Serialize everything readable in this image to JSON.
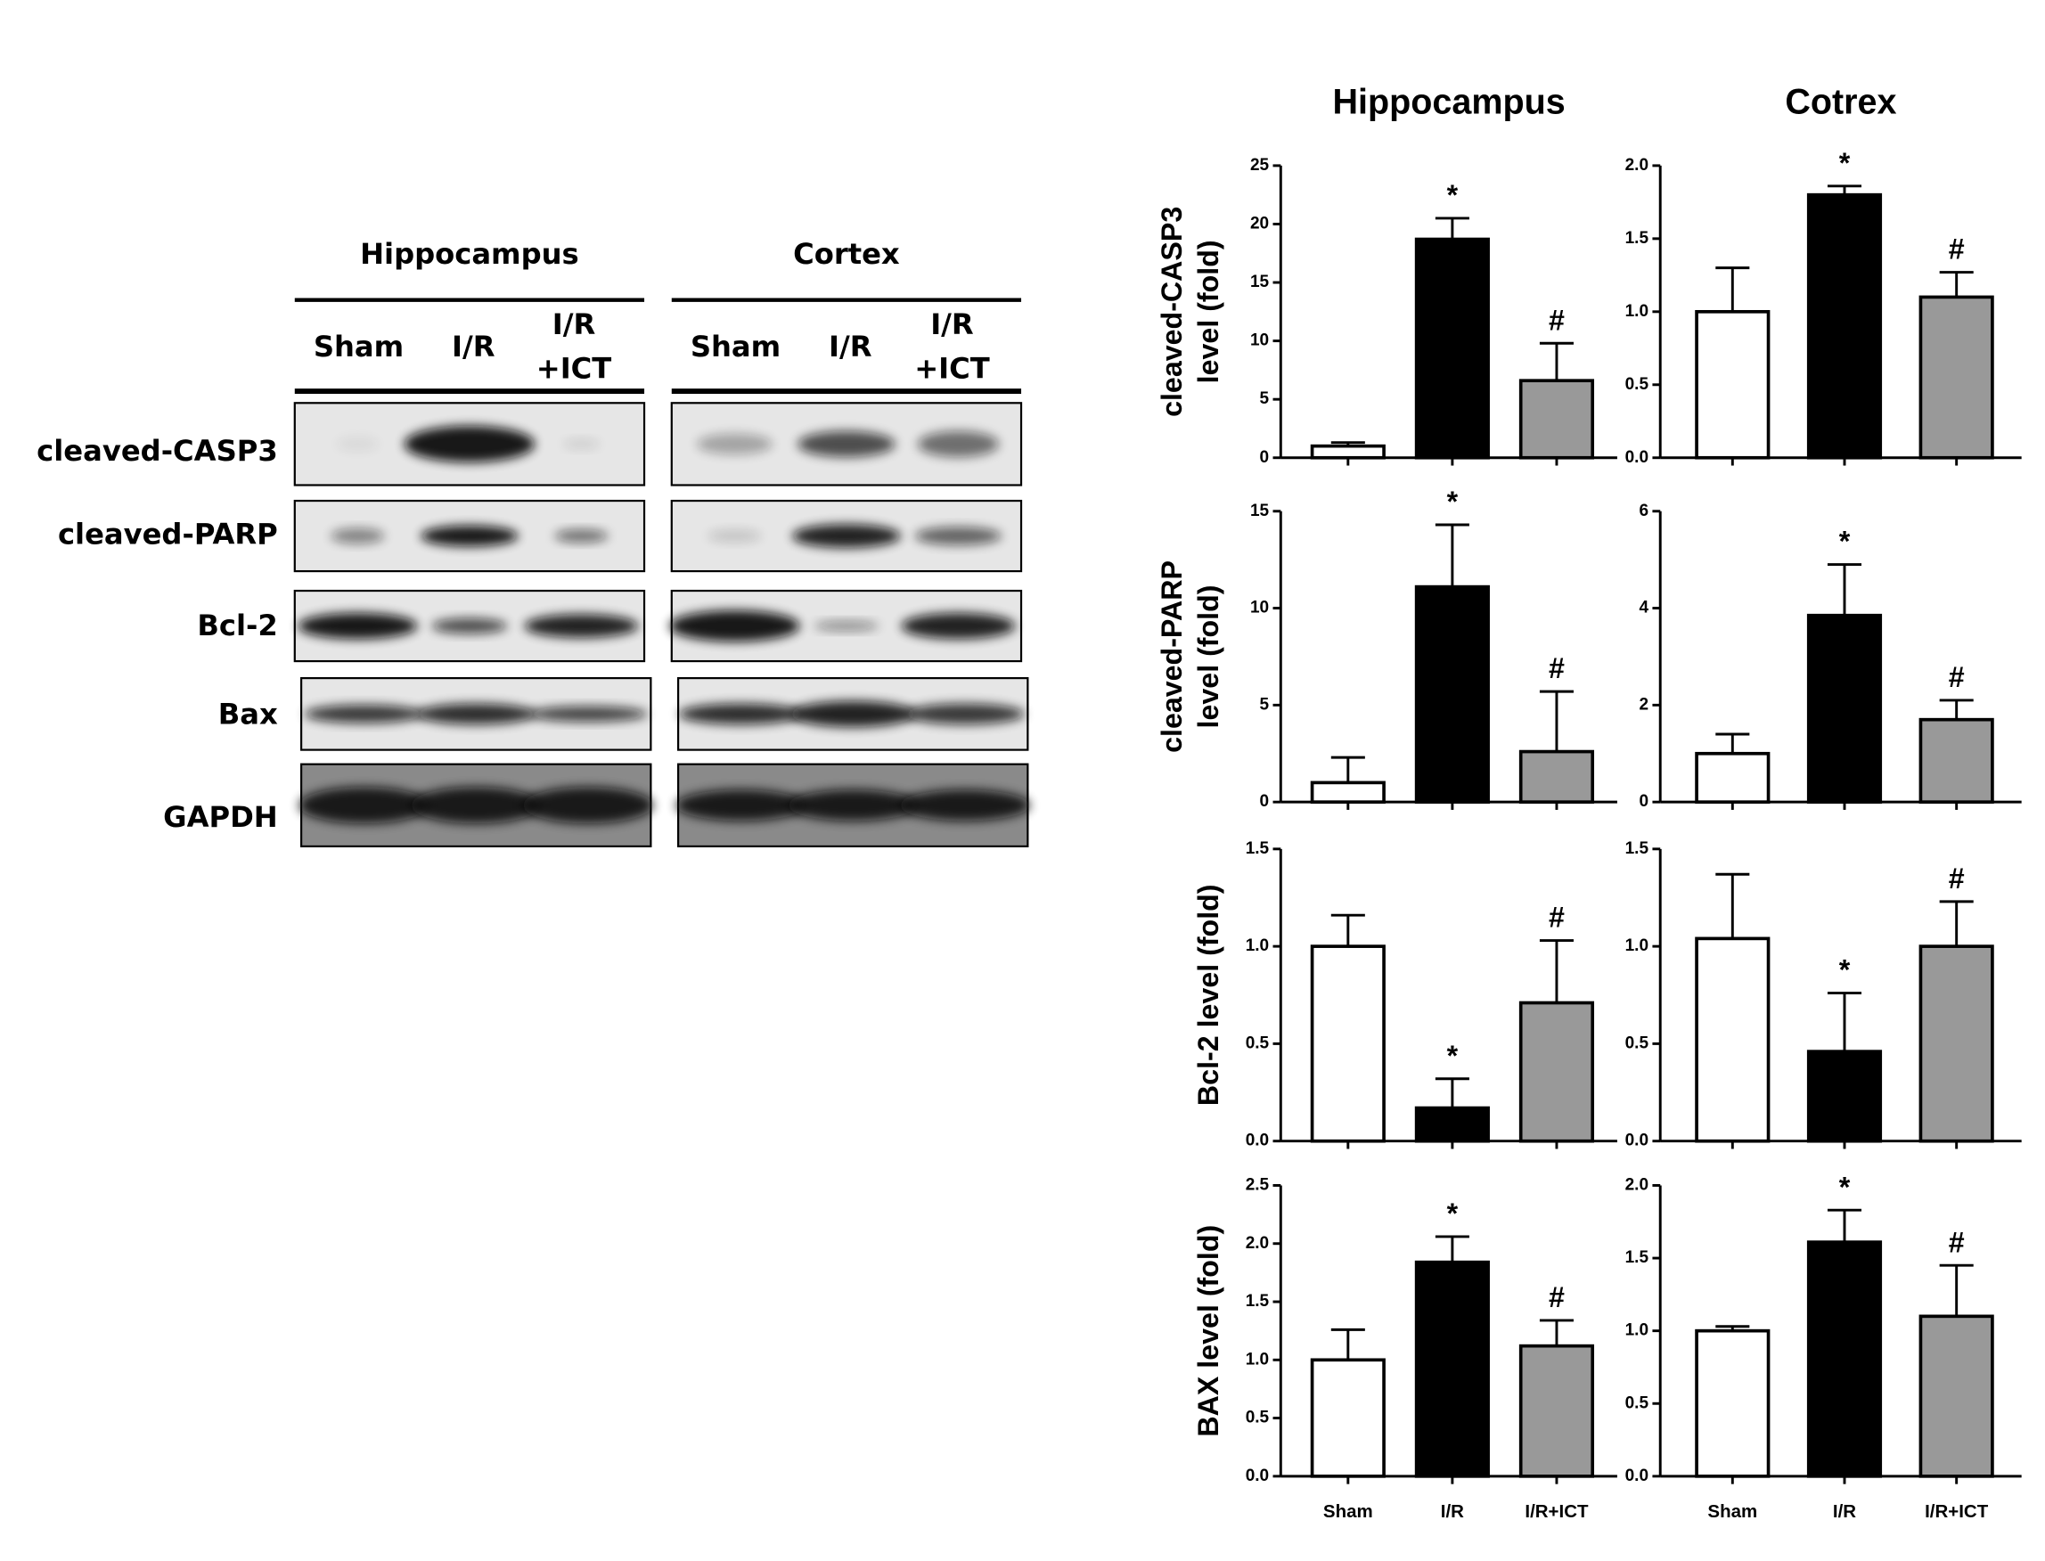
{
  "blot": {
    "groups": [
      "Hippocampus",
      "Cortex"
    ],
    "lanes": [
      [
        "Sham"
      ],
      [
        "I/R"
      ],
      [
        "I/R",
        "+ICT"
      ]
    ],
    "proteins": [
      "cleaved-CASP3",
      "cleaved-PARP",
      "Bcl-2",
      "Bax",
      "GAPDH"
    ]
  },
  "chart_data": [
    {
      "type": "bar",
      "title": "Hippocampus",
      "y_label": [
        "cleaved-CASP3",
        "level (fold)"
      ],
      "categories": [
        null,
        null,
        null
      ],
      "values": [
        1.0,
        18.7,
        6.6
      ],
      "errors": [
        0.3,
        1.8,
        3.2
      ],
      "annotations": [
        null,
        "*",
        "#"
      ],
      "colors": [
        "#ffffff",
        "#000000",
        "#999999"
      ],
      "ylim": [
        0,
        25
      ],
      "yticks": [
        0,
        5,
        10,
        15,
        20,
        25
      ]
    },
    {
      "type": "bar",
      "title": "Cotrex",
      "categories": [
        null,
        null,
        null
      ],
      "values": [
        1.0,
        1.8,
        1.1
      ],
      "errors": [
        0.3,
        0.06,
        0.17
      ],
      "annotations": [
        null,
        "*",
        "#"
      ],
      "colors": [
        "#ffffff",
        "#000000",
        "#999999"
      ],
      "ylim": [
        0,
        2
      ],
      "yticks": [
        {
          "value": 0,
          "label": "0.0"
        },
        0.5,
        {
          "value": 1,
          "label": "1.0"
        },
        1.5,
        {
          "value": 2,
          "label": "2.0"
        }
      ]
    },
    {
      "type": "bar",
      "y_label": [
        "cleaved-PARP",
        "level (fold)"
      ],
      "categories": [
        null,
        null,
        null
      ],
      "values": [
        1.0,
        11.1,
        2.6
      ],
      "errors": [
        1.3,
        3.2,
        3.1
      ],
      "annotations": [
        null,
        "*",
        "#"
      ],
      "colors": [
        "#ffffff",
        "#000000",
        "#999999"
      ],
      "ylim": [
        0,
        15
      ],
      "yticks": [
        0,
        5,
        10,
        15
      ]
    },
    {
      "type": "bar",
      "categories": [
        null,
        null,
        null
      ],
      "values": [
        1.0,
        3.85,
        1.7
      ],
      "errors": [
        0.4,
        1.05,
        0.4
      ],
      "annotations": [
        null,
        "*",
        "#"
      ],
      "colors": [
        "#ffffff",
        "#000000",
        "#999999"
      ],
      "ylim": [
        0,
        6
      ],
      "yticks": [
        0,
        2,
        4,
        6
      ]
    },
    {
      "type": "bar",
      "y_label": [
        "Bcl-2 level (fold)"
      ],
      "categories": [
        null,
        null,
        null
      ],
      "values": [
        1.0,
        0.17,
        0.71
      ],
      "errors": [
        0.16,
        0.15,
        0.32
      ],
      "annotations": [
        null,
        "*",
        "#"
      ],
      "colors": [
        "#ffffff",
        "#000000",
        "#999999"
      ],
      "ylim": [
        0,
        1.5
      ],
      "yticks": [
        {
          "value": 0,
          "label": "0.0"
        },
        0.5,
        {
          "value": 1,
          "label": "1.0"
        },
        1.5
      ]
    },
    {
      "type": "bar",
      "categories": [
        null,
        null,
        null
      ],
      "values": [
        1.04,
        0.46,
        1.0
      ],
      "errors": [
        0.33,
        0.3,
        0.23
      ],
      "annotations": [
        null,
        "*",
        "#"
      ],
      "colors": [
        "#ffffff",
        "#000000",
        "#999999"
      ],
      "ylim": [
        0,
        1.5
      ],
      "yticks": [
        {
          "value": 0,
          "label": "0.0"
        },
        0.5,
        {
          "value": 1,
          "label": "1.0"
        },
        1.5
      ]
    },
    {
      "type": "bar",
      "y_label": [
        "BAX level (fold)"
      ],
      "categories": [
        "Sham",
        "I/R",
        "I/R+ICT"
      ],
      "values": [
        1.0,
        1.84,
        1.12
      ],
      "errors": [
        0.26,
        0.22,
        0.22
      ],
      "annotations": [
        null,
        "*",
        "#"
      ],
      "colors": [
        "#ffffff",
        "#000000",
        "#999999"
      ],
      "ylim": [
        0,
        2.5
      ],
      "yticks": [
        {
          "value": 0,
          "label": "0.0"
        },
        0.5,
        {
          "value": 1,
          "label": "1.0"
        },
        1.5,
        {
          "value": 2,
          "label": "2.0"
        },
        2.5
      ]
    },
    {
      "type": "bar",
      "categories": [
        "Sham",
        "I/R",
        "I/R+ICT"
      ],
      "values": [
        1.0,
        1.61,
        1.1
      ],
      "errors": [
        0.03,
        0.22,
        0.35
      ],
      "annotations": [
        null,
        "*",
        "#"
      ],
      "colors": [
        "#ffffff",
        "#000000",
        "#999999"
      ],
      "ylim": [
        0,
        2
      ],
      "yticks": [
        {
          "value": 0,
          "label": "0.0"
        },
        0.5,
        {
          "value": 1,
          "label": "1.0"
        },
        1.5,
        {
          "value": 2,
          "label": "2.0"
        }
      ]
    }
  ]
}
